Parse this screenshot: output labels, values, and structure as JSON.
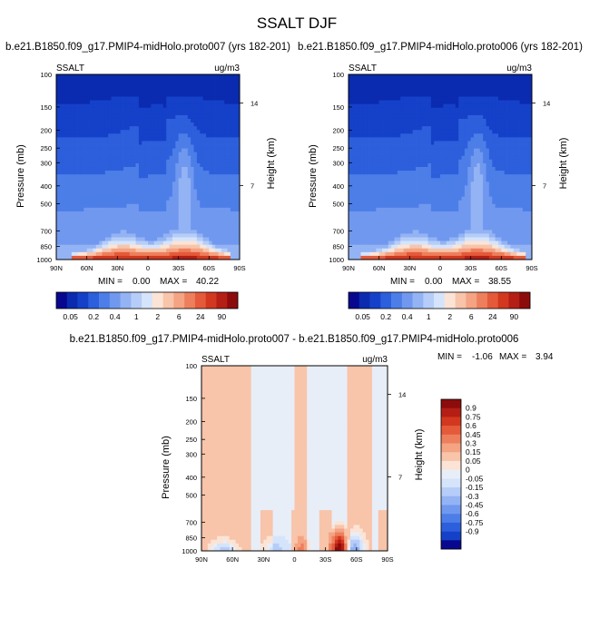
{
  "title": "SSALT DJF",
  "chart_data": [
    {
      "type": "contour",
      "case": "b.e21.B1850.f09_g17.PMIP4-midHolo.proto007 (yrs 182-201)",
      "field": "SSALT",
      "units": "ug/m3",
      "ylabel": "Pressure (mb)",
      "y2label": "Height (km)",
      "pressure_ticks": [
        "100",
        "150",
        "200",
        "250",
        "300",
        "400",
        "500",
        "700",
        "850",
        "1000"
      ],
      "height_ticks": [
        "14",
        "7"
      ],
      "lat_ticks": [
        "90N",
        "60N",
        "30N",
        "0",
        "30S",
        "60S",
        "90S"
      ],
      "min_label": "MIN =",
      "min_value": "0.00",
      "max_label": "MAX =",
      "max_value": "40.22",
      "min": 0.0,
      "max": 40.22
    },
    {
      "type": "contour",
      "case": "b.e21.B1850.f09_g17.PMIP4-midHolo.proto006 (yrs 182-201)",
      "field": "SSALT",
      "units": "ug/m3",
      "ylabel": "Pressure (mb)",
      "y2label": "Height (km)",
      "pressure_ticks": [
        "100",
        "150",
        "200",
        "250",
        "300",
        "400",
        "500",
        "700",
        "850",
        "1000"
      ],
      "height_ticks": [
        "14",
        "7"
      ],
      "lat_ticks": [
        "90N",
        "60N",
        "30N",
        "0",
        "30S",
        "60S",
        "90S"
      ],
      "min_label": "MIN =",
      "min_value": "0.00",
      "max_label": "MAX =",
      "max_value": "38.55",
      "min": 0.0,
      "max": 38.55
    },
    {
      "type": "contour_difference",
      "case": "b.e21.B1850.f09_g17.PMIP4-midHolo.proto007 - b.e21.B1850.f09_g17.PMIP4-midHolo.proto006",
      "field": "SSALT",
      "units": "ug/m3",
      "ylabel": "Pressure (mb)",
      "y2label": "Height (km)",
      "pressure_ticks": [
        "100",
        "150",
        "200",
        "250",
        "300",
        "400",
        "500",
        "700",
        "850",
        "1000"
      ],
      "height_ticks": [
        "14",
        "7"
      ],
      "lat_ticks": [
        "90N",
        "60N",
        "30N",
        "0",
        "30S",
        "60S",
        "90S"
      ],
      "min_label": "MIN =",
      "min_value": "-1.06",
      "max_label": "MAX =",
      "max_value": "3.94",
      "min": -1.06,
      "max": 3.94
    }
  ],
  "colorbar_abs": {
    "levels": [
      "0.05",
      "0.2",
      "0.4",
      "1",
      "2",
      "6",
      "24",
      "90"
    ],
    "colors": [
      "#08088f",
      "#0a2bb0",
      "#1541c9",
      "#2d5fdc",
      "#4d7ee8",
      "#7098ef",
      "#93b3f4",
      "#b5cdf8",
      "#d5e4fb",
      "#fbe4d6",
      "#f8c4aa",
      "#f4a383",
      "#ee7f5c",
      "#e45a3a",
      "#d2381f",
      "#b51e14",
      "#8c0c0c"
    ]
  },
  "colorbar_diff": {
    "labels": [
      "0.9",
      "0.75",
      "0.6",
      "0.45",
      "0.3",
      "0.15",
      "0.05",
      "0",
      "-0.05",
      "-0.15",
      "-0.3",
      "-0.45",
      "-0.6",
      "-0.75",
      "-0.9"
    ],
    "colors": [
      "#8c0c0c",
      "#b51e14",
      "#d2381f",
      "#e45a3a",
      "#ee7f5c",
      "#f4a383",
      "#f8c4aa",
      "#fbe4d6",
      "#e8eef8",
      "#d5e4fb",
      "#b5cdf8",
      "#93b3f4",
      "#7098ef",
      "#4d7ee8",
      "#2d5fdc",
      "#1541c9",
      "#08088f"
    ]
  }
}
